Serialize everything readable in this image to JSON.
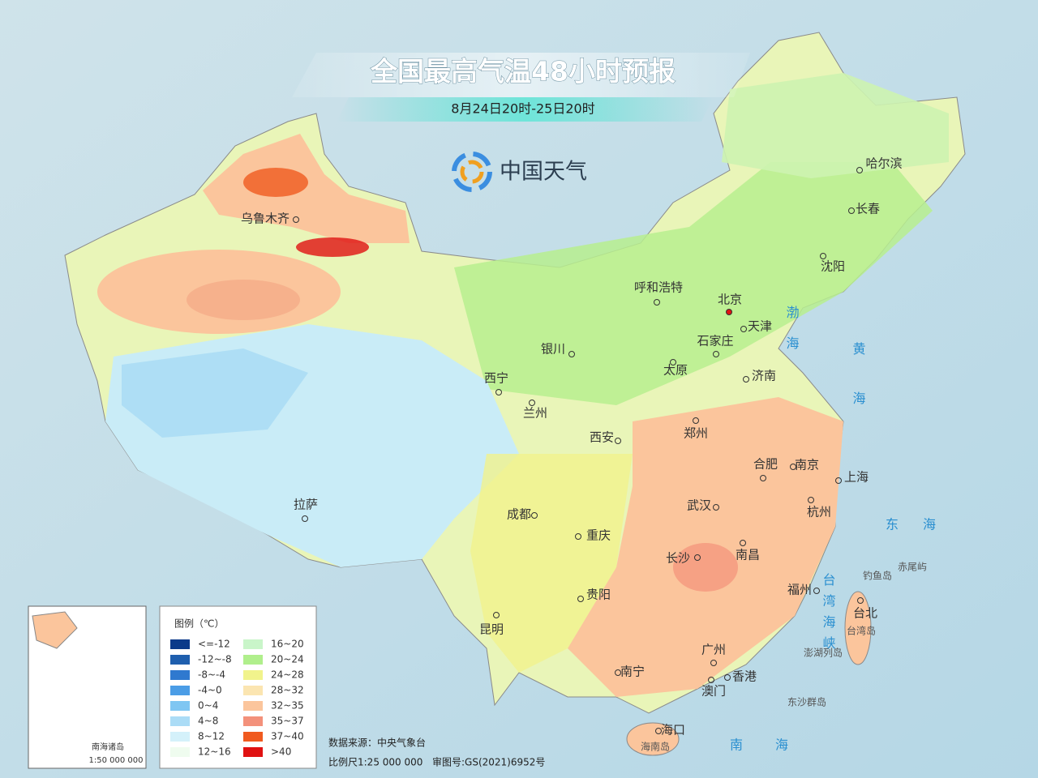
{
  "header": {
    "title": "全国最高气温48小时预报",
    "subtitle": "8月24日20时-25日20时",
    "brand": "中国天气"
  },
  "cities": [
    "乌鲁木齐",
    "呼和浩特",
    "北京",
    "天津",
    "石家庄",
    "银川",
    "太原",
    "济南",
    "西宁",
    "兰州",
    "郑州",
    "西安",
    "合肥",
    "南京",
    "上海",
    "武汉",
    "拉萨",
    "成都",
    "杭州",
    "重庆",
    "长沙",
    "南昌",
    "贵阳",
    "福州",
    "台北",
    "昆明",
    "广州",
    "香港",
    "澳门",
    "南宁",
    "海口",
    "哈尔滨",
    "长春",
    "沈阳"
  ],
  "seas": [
    "渤海",
    "黄海",
    "东海",
    "南海",
    "台湾海峡"
  ],
  "islands": [
    "钓鱼岛",
    "赤尾屿",
    "台湾岛",
    "澎湖列岛",
    "东沙群岛",
    "海南岛"
  ],
  "legend": {
    "title": "图例（℃）",
    "items": [
      {
        "label": "<=-12",
        "color": "#0b3a8a"
      },
      {
        "label": "-12~-8",
        "color": "#1f5fae"
      },
      {
        "label": "-8~-4",
        "color": "#2f79cf"
      },
      {
        "label": "-4~0",
        "color": "#4b9de6"
      },
      {
        "label": "0~4",
        "color": "#7fc6f2"
      },
      {
        "label": "4~8",
        "color": "#abdcf6"
      },
      {
        "label": "8~12",
        "color": "#d4f1fa"
      },
      {
        "label": "12~16",
        "color": "#effcef"
      },
      {
        "label": "16~20",
        "color": "#c9f5c9"
      },
      {
        "label": "20~24",
        "color": "#b0ef8c"
      },
      {
        "label": "24~28",
        "color": "#f1f38c"
      },
      {
        "label": "28~32",
        "color": "#fbe5b1"
      },
      {
        "label": "32~35",
        "color": "#fbc59c"
      },
      {
        "label": "35~37",
        "color": "#f3917b"
      },
      {
        "label": "37~40",
        "color": "#f05a1f"
      },
      {
        "label": ">40",
        "color": "#e01212"
      }
    ]
  },
  "footer": {
    "source": "数据来源：中央气象台",
    "scale": "比例尺1:25 000 000",
    "approval": "审图号:GS(2021)6952号"
  },
  "inset": {
    "title": "南海诸岛",
    "scale": "1:50 000 000"
  }
}
